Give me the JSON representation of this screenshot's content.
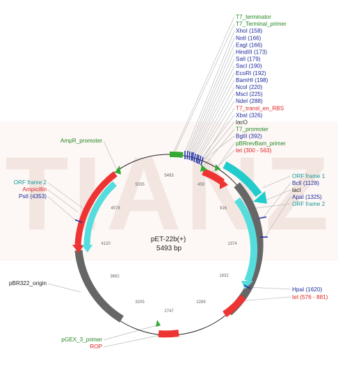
{
  "title": {
    "name": "pET-22b(+)",
    "size": "5493 bp"
  },
  "watermark": "TIANZ",
  "colors": {
    "backbone": "#222222",
    "feature_red": "#ee3333",
    "feature_cyan": "#22cccc",
    "feature_gray": "#666666",
    "feature_green": "#33aa33",
    "site_blue": "#2233aa",
    "label_green": "#228822",
    "label_blue": "#1a2a99",
    "label_red": "#dd2222",
    "label_cyan": "#119999",
    "label_black": "#222222",
    "leader": "#bbbbbb",
    "watermark": "#f5e9e5"
  },
  "ticks": [
    "459",
    "916",
    "1374",
    "1832",
    "2289",
    "2747",
    "3205",
    "3662",
    "4120",
    "4578",
    "5035",
    "5493"
  ],
  "labels": {
    "right_top": [
      {
        "text": "T7_terminator",
        "color": "green"
      },
      {
        "text": "T7_Terminal_primer",
        "color": "green"
      },
      {
        "text": "XhoI (158)",
        "color": "blue"
      },
      {
        "text": "NotI (166)",
        "color": "blue"
      },
      {
        "text": "EagI (166)",
        "color": "blue"
      },
      {
        "text": "HindIII (173)",
        "color": "blue"
      },
      {
        "text": "SalI (179)",
        "color": "blue"
      },
      {
        "text": "SacI (190)",
        "color": "blue"
      },
      {
        "text": "EcoRI (192)",
        "color": "blue"
      },
      {
        "text": "BamHI (198)",
        "color": "blue"
      },
      {
        "text": "NcoI (220)",
        "color": "blue"
      },
      {
        "text": "MscI (225)",
        "color": "blue"
      },
      {
        "text": "NdeI (288)",
        "color": "blue"
      },
      {
        "text": "T7_transl_en_RBS",
        "color": "red"
      },
      {
        "text": "XbaI (326)",
        "color": "blue"
      },
      {
        "text": "lacO",
        "color": "black"
      },
      {
        "text": "T7_promoter",
        "color": "green"
      },
      {
        "text": "BglII (392)",
        "color": "blue"
      },
      {
        "text": "pBRrevBam_primer",
        "color": "green"
      },
      {
        "text": "tet (300 - 563)",
        "color": "red"
      }
    ],
    "right_mid": [
      {
        "text": "ORF frame 1",
        "color": "cyan"
      },
      {
        "text": "BclI (1128)",
        "color": "blue"
      },
      {
        "text": "lacI",
        "color": "black"
      },
      {
        "text": "ApaI (1325)",
        "color": "blue"
      },
      {
        "text": "ORF frame 2",
        "color": "cyan"
      }
    ],
    "right_bottom": [
      {
        "text": "HpaI (1620)",
        "color": "blue"
      },
      {
        "text": "tet (576 - 881)",
        "color": "red"
      }
    ],
    "left": [
      {
        "text": "AmpR_promoter",
        "color": "green"
      },
      {
        "text": "ORF frame 2",
        "color": "cyan"
      },
      {
        "text": "Ampicillin",
        "color": "red"
      },
      {
        "text": "PstI (4353)",
        "color": "blue"
      },
      {
        "text": "pBR322_origin",
        "color": "black"
      },
      {
        "text": "pGEX_3_primer",
        "color": "green"
      },
      {
        "text": "ROP",
        "color": "red"
      }
    ]
  }
}
